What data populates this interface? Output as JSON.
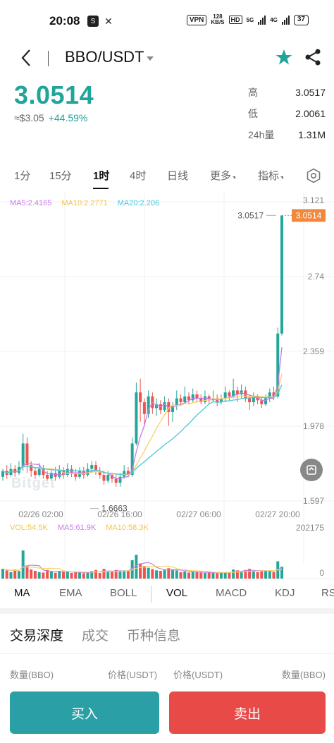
{
  "status": {
    "time": "20:08",
    "vpn": "VPN",
    "speed_value": "128",
    "speed_unit": "KB/S",
    "hd": "HD",
    "net1": "5G",
    "net2": "4G",
    "battery": "37"
  },
  "header": {
    "pair": "BBO/USDT"
  },
  "price": {
    "last": "3.0514",
    "usd": "≈$3.05",
    "change": "+44.59%"
  },
  "stats": [
    {
      "label": "高",
      "value": "3.0517"
    },
    {
      "label": "低",
      "value": "2.0061"
    },
    {
      "label": "24h量",
      "value": "1.31M"
    }
  ],
  "timeframes": {
    "t1m": "1分",
    "t15m": "15分",
    "t1h": "1时",
    "t4h": "4时",
    "t1d": "日线",
    "more": "更多",
    "indicators": "指标"
  },
  "ma_legend": {
    "ma5": "MA5:2.4165",
    "ma10": "MA10:2.2771",
    "ma20": "MA20:2.206"
  },
  "vol_legend": {
    "vol": "VOL:54.5K",
    "ma5": "MA5:61.9K",
    "ma10": "MA10:58.3K"
  },
  "colors": {
    "up": "#26a69a",
    "down": "#ef5350",
    "ma5": "#c77de8",
    "ma10": "#f5d36b",
    "ma20": "#4cc7d8",
    "accent": "#1fa59a",
    "price_tag": "#f0883e"
  },
  "chart_data": {
    "type": "candlestick",
    "price_axis_ticks": [
      "3.121",
      "2.74",
      "2.359",
      "1.978",
      "1.597"
    ],
    "volume_axis_ticks": [
      "202175",
      "0"
    ],
    "time_axis_ticks": [
      "02/26 02:00",
      "02/26 16:00",
      "02/27 06:00",
      "02/27 20:00"
    ],
    "high_label": "3.0517",
    "low_label": "1.6663",
    "last_price_tag": "3.0514",
    "ylim": [
      1.597,
      3.121
    ],
    "vol_max": 202175,
    "candles": [
      [
        1.72,
        1.75,
        1.7,
        1.76,
        1
      ],
      [
        1.75,
        1.73,
        1.71,
        1.78,
        0
      ],
      [
        1.73,
        1.76,
        1.72,
        1.79,
        1
      ],
      [
        1.76,
        1.74,
        1.72,
        1.78,
        0
      ],
      [
        1.74,
        1.77,
        1.73,
        1.8,
        1
      ],
      [
        1.77,
        1.89,
        1.75,
        1.94,
        1
      ],
      [
        1.89,
        1.78,
        1.74,
        1.92,
        0
      ],
      [
        1.78,
        1.75,
        1.72,
        1.8,
        0
      ],
      [
        1.75,
        1.73,
        1.71,
        1.77,
        0
      ],
      [
        1.73,
        1.76,
        1.72,
        1.79,
        1
      ],
      [
        1.76,
        1.73,
        1.71,
        1.78,
        0
      ],
      [
        1.73,
        1.71,
        1.69,
        1.75,
        0
      ],
      [
        1.71,
        1.74,
        1.7,
        1.76,
        1
      ],
      [
        1.74,
        1.72,
        1.7,
        1.77,
        0
      ],
      [
        1.72,
        1.75,
        1.71,
        1.78,
        1
      ],
      [
        1.75,
        1.73,
        1.71,
        1.77,
        0
      ],
      [
        1.73,
        1.76,
        1.72,
        1.79,
        1
      ],
      [
        1.76,
        1.74,
        1.72,
        1.78,
        0
      ],
      [
        1.74,
        1.72,
        1.7,
        1.76,
        0
      ],
      [
        1.72,
        1.75,
        1.71,
        1.77,
        1
      ],
      [
        1.75,
        1.73,
        1.71,
        1.77,
        0
      ],
      [
        1.73,
        1.76,
        1.72,
        1.79,
        1
      ],
      [
        1.76,
        1.78,
        1.74,
        1.8,
        1
      ],
      [
        1.78,
        1.75,
        1.73,
        1.8,
        0
      ],
      [
        1.75,
        1.73,
        1.71,
        1.77,
        0
      ],
      [
        1.73,
        1.7,
        1.68,
        1.75,
        0
      ],
      [
        1.7,
        1.73,
        1.69,
        1.75,
        1
      ],
      [
        1.73,
        1.71,
        1.69,
        1.74,
        0
      ],
      [
        1.71,
        1.69,
        1.67,
        1.73,
        0
      ],
      [
        1.69,
        1.72,
        1.67,
        1.74,
        1
      ],
      [
        1.72,
        1.75,
        1.71,
        1.78,
        1
      ],
      [
        1.75,
        1.73,
        1.72,
        1.77,
        0
      ],
      [
        1.73,
        1.89,
        1.72,
        1.92,
        1
      ],
      [
        1.89,
        2.15,
        1.88,
        2.2,
        1
      ],
      [
        2.15,
        2.1,
        2.0,
        2.22,
        0
      ],
      [
        2.1,
        2.04,
        1.98,
        2.12,
        0
      ],
      [
        2.04,
        2.13,
        2.02,
        2.16,
        1
      ],
      [
        2.13,
        2.07,
        2.04,
        2.15,
        0
      ],
      [
        2.07,
        2.09,
        2.03,
        2.12,
        1
      ],
      [
        2.09,
        2.06,
        2.04,
        2.11,
        0
      ],
      [
        2.06,
        2.1,
        2.05,
        2.13,
        1
      ],
      [
        2.1,
        2.05,
        1.98,
        2.12,
        0
      ],
      [
        2.05,
        2.08,
        2.0,
        2.1,
        1
      ],
      [
        2.08,
        2.12,
        2.06,
        2.16,
        1
      ],
      [
        2.12,
        2.1,
        2.08,
        2.14,
        0
      ],
      [
        2.1,
        2.13,
        2.09,
        2.18,
        1
      ],
      [
        2.13,
        2.11,
        2.09,
        2.15,
        0
      ],
      [
        2.11,
        2.14,
        2.1,
        2.17,
        1
      ],
      [
        2.14,
        2.12,
        2.1,
        2.16,
        0
      ],
      [
        2.12,
        2.1,
        2.09,
        2.14,
        0
      ],
      [
        2.1,
        2.13,
        2.09,
        2.16,
        1
      ],
      [
        2.13,
        2.11,
        2.09,
        2.14,
        0
      ],
      [
        2.11,
        2.12,
        2.1,
        2.16,
        1
      ],
      [
        2.12,
        2.1,
        2.08,
        2.14,
        0
      ],
      [
        2.1,
        2.12,
        2.09,
        2.14,
        1
      ],
      [
        2.12,
        2.15,
        2.1,
        2.18,
        1
      ],
      [
        2.15,
        2.13,
        2.11,
        2.16,
        0
      ],
      [
        2.13,
        2.16,
        2.12,
        2.22,
        1
      ],
      [
        2.16,
        2.14,
        2.1,
        2.18,
        0
      ],
      [
        2.14,
        2.16,
        2.12,
        2.19,
        1
      ],
      [
        2.16,
        2.12,
        2.1,
        2.18,
        0
      ],
      [
        2.12,
        2.1,
        2.06,
        2.14,
        0
      ],
      [
        2.1,
        2.13,
        2.08,
        2.15,
        1
      ],
      [
        2.13,
        2.11,
        2.09,
        2.14,
        0
      ],
      [
        2.11,
        2.09,
        2.07,
        2.13,
        0
      ],
      [
        2.09,
        2.12,
        2.08,
        2.14,
        1
      ],
      [
        2.12,
        2.15,
        2.1,
        2.17,
        1
      ],
      [
        2.15,
        2.13,
        2.11,
        2.18,
        0
      ],
      [
        2.13,
        2.45,
        2.12,
        2.48,
        1
      ],
      [
        2.45,
        3.0514,
        2.44,
        3.0517,
        1
      ]
    ],
    "volumes": [
      [
        45000,
        1
      ],
      [
        38000,
        0
      ],
      [
        30000,
        1
      ],
      [
        42000,
        0
      ],
      [
        35000,
        1
      ],
      [
        130000,
        1
      ],
      [
        60000,
        0
      ],
      [
        42000,
        0
      ],
      [
        36000,
        0
      ],
      [
        30000,
        1
      ],
      [
        28000,
        0
      ],
      [
        40000,
        0
      ],
      [
        34000,
        1
      ],
      [
        27000,
        0
      ],
      [
        36000,
        1
      ],
      [
        30000,
        0
      ],
      [
        32000,
        1
      ],
      [
        26000,
        0
      ],
      [
        31000,
        0
      ],
      [
        28000,
        1
      ],
      [
        25000,
        0
      ],
      [
        30000,
        1
      ],
      [
        35000,
        1
      ],
      [
        40000,
        0
      ],
      [
        26000,
        0
      ],
      [
        45000,
        0
      ],
      [
        30000,
        1
      ],
      [
        33000,
        0
      ],
      [
        40000,
        0
      ],
      [
        34000,
        1
      ],
      [
        38000,
        1
      ],
      [
        36000,
        0
      ],
      [
        85000,
        1
      ],
      [
        110000,
        1
      ],
      [
        70000,
        0
      ],
      [
        58000,
        0
      ],
      [
        50000,
        1
      ],
      [
        44000,
        0
      ],
      [
        38000,
        1
      ],
      [
        36000,
        0
      ],
      [
        40000,
        1
      ],
      [
        48000,
        0
      ],
      [
        42000,
        1
      ],
      [
        38000,
        1
      ],
      [
        30000,
        0
      ],
      [
        34000,
        1
      ],
      [
        28000,
        0
      ],
      [
        32000,
        1
      ],
      [
        30000,
        0
      ],
      [
        28000,
        0
      ],
      [
        26000,
        1
      ],
      [
        30000,
        0
      ],
      [
        28000,
        1
      ],
      [
        25000,
        0
      ],
      [
        27000,
        1
      ],
      [
        30000,
        1
      ],
      [
        28000,
        0
      ],
      [
        42000,
        1
      ],
      [
        38000,
        0
      ],
      [
        32000,
        1
      ],
      [
        40000,
        0
      ],
      [
        45000,
        0
      ],
      [
        36000,
        1
      ],
      [
        30000,
        0
      ],
      [
        34000,
        0
      ],
      [
        38000,
        1
      ],
      [
        36000,
        1
      ],
      [
        30000,
        0
      ],
      [
        80000,
        1
      ],
      [
        54500,
        1
      ]
    ]
  },
  "indicator_tabs": {
    "ma": "MA",
    "ema": "EMA",
    "boll": "BOLL",
    "vol": "VOL",
    "macd": "MACD",
    "kdj": "KDJ",
    "rsi": "RS"
  },
  "sections": {
    "depth": "交易深度",
    "trades": "成交",
    "info": "币种信息"
  },
  "depth_header": {
    "qty_left": "数量(BBO)",
    "price_left": "价格(USDT)",
    "price_right": "价格(USDT)",
    "qty_right": "数量(BBO)"
  },
  "actions": {
    "buy": "买入",
    "sell": "卖出"
  },
  "watermark": "Bitget"
}
